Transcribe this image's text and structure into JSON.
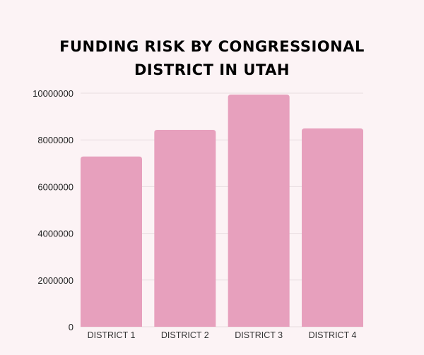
{
  "chart_data": {
    "type": "bar",
    "title": "FUNDING RISK BY CONGRESSIONAL DISTRICT IN UTAH",
    "title_lines": [
      "FUNDING RISK BY CONGRESSIONAL",
      "DISTRICT IN UTAH"
    ],
    "categories": [
      "DISTRICT 1",
      "DISTRICT 2",
      "DISTRICT 3",
      "DISTRICT 4"
    ],
    "values": [
      7290000,
      8430000,
      9940000,
      8490000
    ],
    "xlabel": "",
    "ylabel": "",
    "ylim": [
      0,
      10000000
    ],
    "yticks": [
      "0",
      "2000000",
      "4000000",
      "6000000",
      "8000000",
      "10000000"
    ],
    "grid": true,
    "legend": "none",
    "colors": {
      "bar": "#e7a0bd",
      "grid": "#e8dde0",
      "background": "#fcf3f5"
    }
  }
}
